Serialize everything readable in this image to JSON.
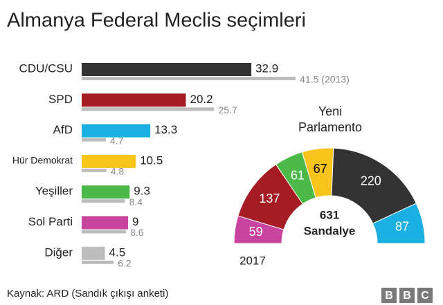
{
  "title": "Almanya Federal Meclis seçimleri",
  "source": "Kaynak: ARD (Sandık çıkışı anketi)",
  "logo": [
    "B",
    "B",
    "C"
  ],
  "chart_data": [
    {
      "type": "bar",
      "categories": [
        "CDU/CSU",
        "SPD",
        "AfD",
        "Hür Demokrat",
        "Yeşiller",
        "Sol Parti",
        "Diğer"
      ],
      "series": [
        {
          "values": [
            32.9,
            20.2,
            13.3,
            10.5,
            9.3,
            9,
            4.5
          ],
          "colors": [
            "#333333",
            "#a51c24",
            "#1ab0e2",
            "#f8c31b",
            "#4cb848",
            "#c9449f",
            "#bdbdbd"
          ]
        },
        {
          "values": [
            41.5,
            25.7,
            4.7,
            4.8,
            8.4,
            8.6,
            6.2
          ],
          "value_labels": [
            "41.5 (2013)",
            "25.7",
            "4.7",
            "4.8",
            "8.4",
            "8.6",
            "6.2"
          ],
          "color": "#bdbdbd"
        }
      ]
    },
    {
      "type": "pie",
      "title": "Yeni Parlamento",
      "year_label": "2017",
      "total": 631,
      "center_label": "Sandalye",
      "values": [
        59,
        137,
        61,
        67,
        220,
        87
      ],
      "colors": [
        "#c9449f",
        "#a51c24",
        "#4cb848",
        "#f8c31b",
        "#333333",
        "#1ab0e2"
      ],
      "label_colors": [
        "#ffffff",
        "#ffffff",
        "#ffffff",
        "#000000",
        "#ffffff",
        "#ffffff"
      ]
    }
  ]
}
